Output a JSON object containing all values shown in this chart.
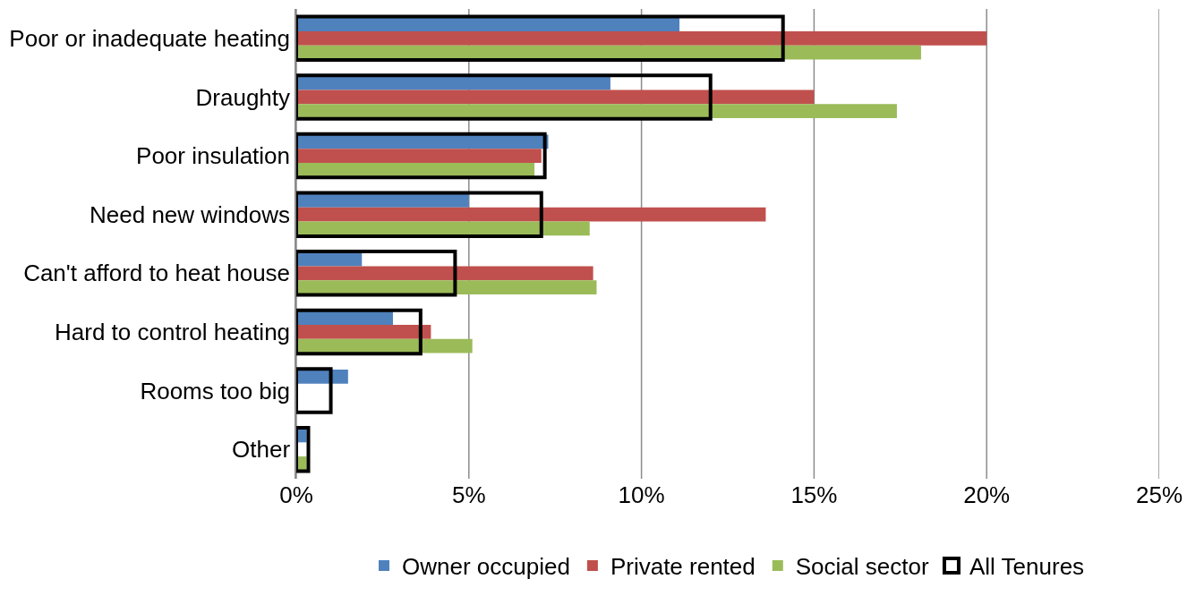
{
  "chart_data": {
    "type": "bar",
    "orientation": "horizontal",
    "categories": [
      "Poor or inadequate heating",
      "Draughty",
      "Poor insulation",
      "Need new windows",
      "Can't afford to heat house",
      "Hard to control heating",
      "Rooms too big",
      "Other"
    ],
    "series": [
      {
        "name": "Owner occupied",
        "color": "#4f81bd",
        "values": [
          11.1,
          9.1,
          7.3,
          5.0,
          1.9,
          2.8,
          1.5,
          0.3
        ]
      },
      {
        "name": "Private rented",
        "color": "#c0504d",
        "values": [
          20.0,
          15.0,
          7.1,
          13.6,
          8.6,
          3.9,
          0,
          0
        ]
      },
      {
        "name": "Social sector",
        "color": "#9bbb59",
        "values": [
          18.1,
          17.4,
          6.9,
          8.5,
          8.7,
          5.1,
          0,
          0.3
        ]
      },
      {
        "name": "All Tenures",
        "color": "#000000",
        "line_style": "solid",
        "values": [
          14.1,
          12.0,
          7.2,
          7.1,
          4.6,
          3.6,
          1.0,
          0.35
        ]
      }
    ],
    "xlim": [
      0,
      25
    ],
    "xticks": [
      {
        "value": 0,
        "label": "0%"
      },
      {
        "value": 5,
        "label": "5%"
      },
      {
        "value": 10,
        "label": "10%"
      },
      {
        "value": 15,
        "label": "15%"
      },
      {
        "value": 20,
        "label": "20%"
      },
      {
        "value": 25,
        "label": "25%"
      }
    ],
    "grid": "x",
    "legend": "bottom"
  }
}
